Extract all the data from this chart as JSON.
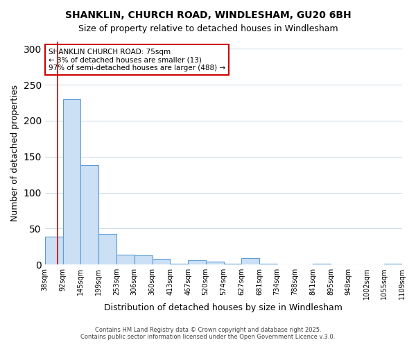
{
  "title1": "SHANKLIN, CHURCH ROAD, WINDLESHAM, GU20 6BH",
  "title2": "Size of property relative to detached houses in Windlesham",
  "xlabel": "Distribution of detached houses by size in Windlesham",
  "ylabel": "Number of detached properties",
  "bar_edges": [
    38,
    92,
    145,
    199,
    253,
    306,
    360,
    413,
    467,
    520,
    574,
    627,
    681,
    734,
    788,
    841,
    895,
    948,
    1002,
    1055,
    1109
  ],
  "bar_heights": [
    39,
    230,
    138,
    43,
    14,
    13,
    8,
    1,
    6,
    4,
    1,
    9,
    1,
    0,
    0,
    1,
    0,
    0,
    0,
    1
  ],
  "bar_color": "#cce0f5",
  "bar_edgecolor": "#5b9bd5",
  "ylim": [
    0,
    310
  ],
  "yticks": [
    0,
    50,
    100,
    150,
    200,
    250,
    300
  ],
  "annotation_title": "SHANKLIN CHURCH ROAD: 75sqm",
  "annotation_line1": "← 3% of detached houses are smaller (13)",
  "annotation_line2": "97% of semi-detached houses are larger (488) →",
  "annotation_box_color": "#ffffff",
  "annotation_box_edgecolor": "#cc0000",
  "vline_x": 75,
  "vline_color": "#cc0000",
  "footer1": "Contains HM Land Registry data © Crown copyright and database right 2025.",
  "footer2": "Contains public sector information licensed under the Open Government Licence v.3.0.",
  "background_color": "#ffffff",
  "grid_color": "#d0dde8"
}
